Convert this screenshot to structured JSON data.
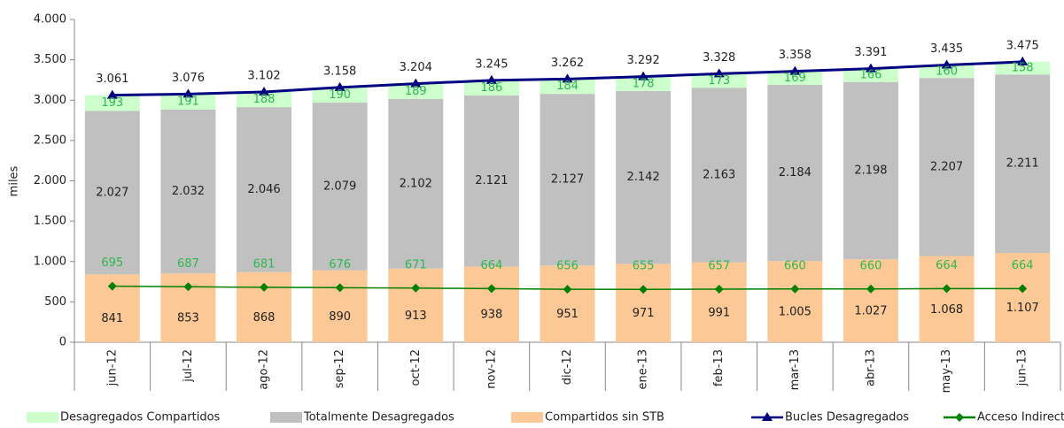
{
  "chart_data": {
    "type": "bar",
    "stacked": true,
    "y_label": "miles",
    "categories": [
      "jun-12",
      "jul-12",
      "ago-12",
      "sep-12",
      "oct-12",
      "nov-12",
      "dic-12",
      "ene-13",
      "feb-13",
      "mar-13",
      "abr-13",
      "may-13",
      "jun-13"
    ],
    "series": [
      {
        "name": "Compartidos sin STB",
        "type": "bar",
        "color": "#fcc896",
        "label_color": "#222222",
        "values": [
          841,
          853,
          868,
          890,
          913,
          938,
          951,
          971,
          991,
          1005,
          1027,
          1068,
          1107
        ],
        "value_labels": [
          "841",
          "853",
          "868",
          "890",
          "913",
          "938",
          "951",
          "971",
          "991",
          "1.005",
          "1.027",
          "1.068",
          "1.107"
        ]
      },
      {
        "name": "Totalmente Desagregados",
        "type": "bar",
        "color": "#c0c0c0",
        "label_color": "#222222",
        "values": [
          2027,
          2032,
          2046,
          2079,
          2102,
          2121,
          2127,
          2142,
          2163,
          2184,
          2198,
          2207,
          2211
        ],
        "value_labels": [
          "2.027",
          "2.032",
          "2.046",
          "2.079",
          "2.102",
          "2.121",
          "2.127",
          "2.142",
          "2.163",
          "2.184",
          "2.198",
          "2.207",
          "2.211"
        ]
      },
      {
        "name": "Desagregados Compartidos",
        "type": "bar",
        "color": "#ccffcc",
        "label_color": "#2db84d",
        "values": [
          193,
          191,
          188,
          190,
          189,
          186,
          184,
          178,
          173,
          169,
          166,
          160,
          158
        ]
      },
      {
        "name": "Bucles Desagregados",
        "type": "line",
        "color": "#000080",
        "marker": "triangle",
        "label_color": "#222222",
        "values": [
          3061,
          3076,
          3102,
          3158,
          3204,
          3245,
          3262,
          3292,
          3328,
          3358,
          3391,
          3435,
          3475
        ],
        "value_labels": [
          "3.061",
          "3.076",
          "3.102",
          "3.158",
          "3.204",
          "3.245",
          "3.262",
          "3.292",
          "3.328",
          "3.358",
          "3.391",
          "3.435",
          "3.475"
        ]
      },
      {
        "name": "Acceso Indirecto",
        "type": "line",
        "color": "#008000",
        "marker": "diamond",
        "label_color": "#2db84d",
        "values": [
          695,
          687,
          681,
          676,
          671,
          664,
          656,
          655,
          657,
          660,
          660,
          664,
          664
        ]
      }
    ],
    "legend_order": [
      2,
      1,
      0,
      3,
      4
    ],
    "ylim": [
      0,
      4000
    ],
    "yticks": [
      0,
      500,
      {
        "value": 1000,
        "label": "1.000"
      },
      {
        "value": 1500,
        "label": "1.500"
      },
      {
        "value": 2000,
        "label": "2.000"
      },
      {
        "value": 2500,
        "label": "2.500"
      },
      {
        "value": 3000,
        "label": "3.000"
      },
      {
        "value": 3500,
        "label": "3.500"
      },
      {
        "value": 4000,
        "label": "4.000"
      }
    ]
  }
}
